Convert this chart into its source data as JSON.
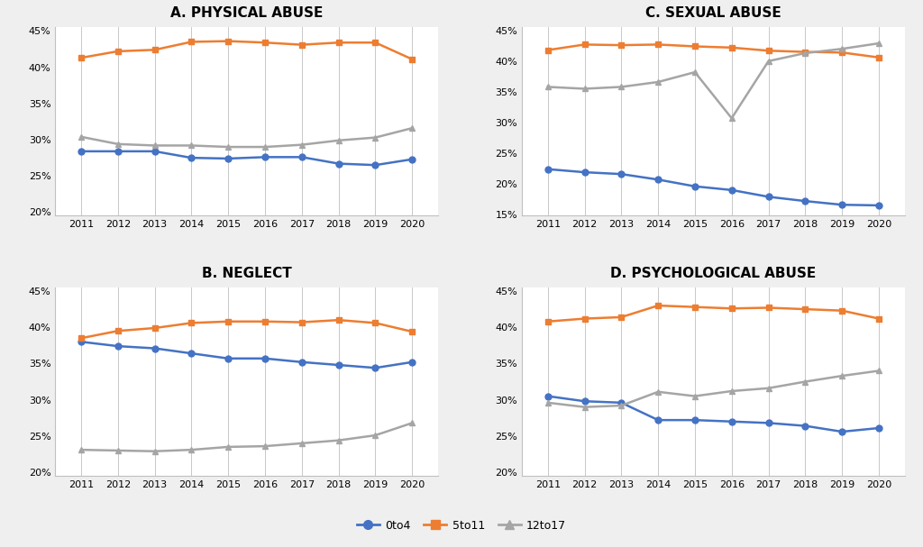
{
  "years": [
    2011,
    2012,
    2013,
    2014,
    2015,
    2016,
    2017,
    2018,
    2019,
    2020
  ],
  "panels": [
    {
      "title": "A. PHYSICAL ABUSE",
      "ylim": [
        0.195,
        0.455
      ],
      "yticks": [
        0.2,
        0.25,
        0.3,
        0.35,
        0.4,
        0.45
      ],
      "series": {
        "0to4": [
          0.284,
          0.284,
          0.284,
          0.275,
          0.274,
          0.276,
          0.276,
          0.267,
          0.265,
          0.273
        ],
        "5to11": [
          0.413,
          0.422,
          0.424,
          0.435,
          0.436,
          0.434,
          0.431,
          0.434,
          0.434,
          0.411
        ],
        "12to17": [
          0.304,
          0.294,
          0.292,
          0.292,
          0.29,
          0.29,
          0.293,
          0.299,
          0.303,
          0.316
        ]
      }
    },
    {
      "title": "C. SEXUAL ABUSE",
      "ylim": [
        0.148,
        0.455
      ],
      "yticks": [
        0.15,
        0.2,
        0.25,
        0.3,
        0.35,
        0.4,
        0.45
      ],
      "series": {
        "0to4": [
          0.224,
          0.219,
          0.216,
          0.207,
          0.196,
          0.19,
          0.179,
          0.172,
          0.166,
          0.165
        ],
        "5to11": [
          0.418,
          0.427,
          0.426,
          0.427,
          0.424,
          0.422,
          0.417,
          0.415,
          0.414,
          0.406
        ],
        "12to17": [
          0.358,
          0.355,
          0.358,
          0.366,
          0.382,
          0.307,
          0.4,
          0.413,
          0.42,
          0.429
        ]
      }
    },
    {
      "title": "B. NEGLECT",
      "ylim": [
        0.195,
        0.455
      ],
      "yticks": [
        0.2,
        0.25,
        0.3,
        0.35,
        0.4,
        0.45
      ],
      "series": {
        "0to4": [
          0.38,
          0.374,
          0.371,
          0.364,
          0.357,
          0.357,
          0.352,
          0.348,
          0.344,
          0.352
        ],
        "5to11": [
          0.385,
          0.395,
          0.399,
          0.406,
          0.408,
          0.408,
          0.407,
          0.41,
          0.406,
          0.394
        ],
        "12to17": [
          0.231,
          0.23,
          0.229,
          0.231,
          0.235,
          0.236,
          0.24,
          0.244,
          0.251,
          0.268
        ]
      }
    },
    {
      "title": "D. PSYCHOLOGICAL ABUSE",
      "ylim": [
        0.195,
        0.455
      ],
      "yticks": [
        0.2,
        0.25,
        0.3,
        0.35,
        0.4,
        0.45
      ],
      "series": {
        "0to4": [
          0.305,
          0.298,
          0.296,
          0.272,
          0.272,
          0.27,
          0.268,
          0.264,
          0.256,
          0.261
        ],
        "5to11": [
          0.408,
          0.412,
          0.414,
          0.43,
          0.428,
          0.426,
          0.427,
          0.425,
          0.423,
          0.412
        ],
        "12to17": [
          0.296,
          0.29,
          0.292,
          0.311,
          0.305,
          0.312,
          0.316,
          0.325,
          0.333,
          0.34
        ]
      }
    }
  ],
  "colors": {
    "0to4": "#4472C4",
    "5to11": "#ED7D31",
    "12to17": "#A5A5A5"
  },
  "markers": {
    "0to4": "o",
    "5to11": "s",
    "12to17": "^"
  },
  "background_color": "#EFEFEF",
  "panel_bg": "#FFFFFF",
  "grid_color": "#C8C8C8",
  "spine_color": "#C0C0C0",
  "title_fontsize": 11,
  "tick_fontsize": 8,
  "legend_fontsize": 9,
  "line_width": 1.8,
  "marker_size": 5
}
